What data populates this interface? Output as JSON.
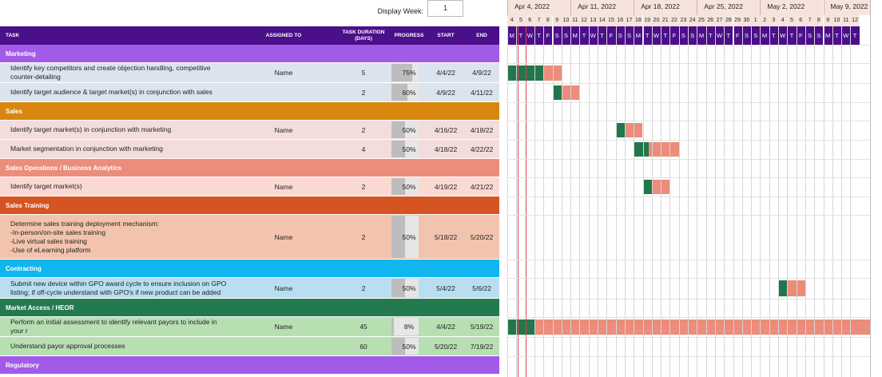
{
  "display_week": {
    "label": "Display Week:",
    "value": "1"
  },
  "header": {
    "task": "TASK",
    "assigned": "ASSIGNED TO",
    "duration": "TASK DURATION (DAYS)",
    "progress": "PROGRESS",
    "start": "START",
    "end": "END"
  },
  "timeline": {
    "weeks": [
      "Apr 4, 2022",
      "Apr 11, 2022",
      "Apr 18, 2022",
      "Apr 25, 2022",
      "May 2, 2022",
      "May 9, 2022"
    ],
    "day_numbers": [
      "4",
      "5",
      "6",
      "7",
      "8",
      "9",
      "10",
      "11",
      "12",
      "13",
      "14",
      "15",
      "16",
      "17",
      "18",
      "19",
      "20",
      "21",
      "22",
      "23",
      "24",
      "25",
      "26",
      "27",
      "28",
      "29",
      "30",
      "1",
      "2",
      "3",
      "4",
      "5",
      "6",
      "7",
      "8",
      "9",
      "10",
      "11",
      "12"
    ],
    "day_letters": [
      "M",
      "T",
      "W",
      "T",
      "F",
      "S",
      "S",
      "M",
      "T",
      "W",
      "T",
      "F",
      "S",
      "S",
      "M",
      "T",
      "W",
      "T",
      "F",
      "S",
      "S",
      "M",
      "T",
      "W",
      "T",
      "F",
      "S",
      "S",
      "M",
      "T",
      "W",
      "T",
      "F",
      "S",
      "S",
      "M",
      "T",
      "W",
      "T"
    ]
  },
  "colors": {
    "header": "#4b0f8a",
    "bar_done": "#23764b",
    "bar_remaining": "#ec8c7b",
    "today": "#d9454f",
    "week_header": "#f6e4dc"
  },
  "groups": [
    {
      "name": "Marketing",
      "color": "#a25ae8",
      "row_color": "#dbe3ee",
      "tasks": [
        {
          "task": "Identify key competitors and create objection handling, competitive\ncounter-detailing",
          "assigned": "Name",
          "duration": "5",
          "progress": "75%",
          "progress_frac": 0.75,
          "start": "4/4/22",
          "end": "4/9/22",
          "bar_start_day": 0,
          "bar_days": 6
        },
        {
          "task": "Identify target audience & target market(s) in conjunction with sales",
          "assigned": "",
          "duration": "2",
          "progress": "60%",
          "progress_frac": 0.6,
          "start": "4/9/22",
          "end": "4/11/22",
          "bar_start_day": 5,
          "bar_days": 3
        }
      ]
    },
    {
      "name": "Sales",
      "color": "#d9860f",
      "row_color": "#f3dcdc",
      "tasks": [
        {
          "task": "Identify target market(s) in conjunction with marketing",
          "assigned": "Name",
          "duration": "2",
          "progress": "50%",
          "progress_frac": 0.5,
          "start": "4/16/22",
          "end": "4/18/22",
          "bar_start_day": 12,
          "bar_days": 3
        },
        {
          "task": "Market segmentation in conjunction with marketing",
          "assigned": "",
          "duration": "4",
          "progress": "50%",
          "progress_frac": 0.5,
          "start": "4/18/22",
          "end": "4/22/22",
          "bar_start_day": 14,
          "bar_days": 5
        }
      ]
    },
    {
      "name": "Sales Operations / Business Analytics",
      "color": "#ec8c7b",
      "row_color": "#fad9d2",
      "tasks": [
        {
          "task": "Identify target market(s)",
          "assigned": "Name",
          "duration": "2",
          "progress": "50%",
          "progress_frac": 0.5,
          "start": "4/19/22",
          "end": "4/21/22",
          "bar_start_day": 15,
          "bar_days": 3
        }
      ]
    },
    {
      "name": "Sales Training",
      "color": "#d65322",
      "row_color": "#f3c4ad",
      "tasks": [
        {
          "task": "Determine sales training deployment mechanism:\n-In-person/on-site sales training\n-Live virtual sales training\n-Use of eLearning platform",
          "assigned": "Name",
          "duration": "2",
          "progress": "50%",
          "progress_frac": 0.5,
          "start": "5/18/22",
          "end": "5/20/22",
          "bar_start_day": -1,
          "bar_days": 0
        }
      ]
    },
    {
      "name": "Contracting",
      "color": "#12b6ef",
      "row_color": "#b9def2",
      "tasks": [
        {
          "task": "Submit new device within GPO award cycle to ensure inclusion on GPO\nlisting; if off-cycle understand with GPO's if new product can be added",
          "assigned": "Name",
          "duration": "2",
          "progress": "50%",
          "progress_frac": 0.5,
          "start": "5/4/22",
          "end": "5/6/22",
          "bar_start_day": 30,
          "bar_days": 3
        }
      ]
    },
    {
      "name": "Market Access / HEOR",
      "color": "#237a4f",
      "row_color": "#b7dfb2",
      "tasks": [
        {
          "task": "Perform an initial assessment to identify relevant payors to include in your r",
          "assigned": "Name",
          "duration": "45",
          "progress": "8%",
          "progress_frac": 0.08,
          "start": "4/4/22",
          "end": "5/19/22",
          "bar_start_day": 0,
          "bar_days": 45
        },
        {
          "task": "Understand payor approval processes",
          "assigned": "",
          "duration": "60",
          "progress": "50%",
          "progress_frac": 0.5,
          "start": "5/20/22",
          "end": "7/19/22",
          "bar_start_day": -1,
          "bar_days": 0
        }
      ]
    },
    {
      "name": "Regulatory",
      "color": "#a25ae8",
      "row_color": "#dbe3ee",
      "tasks": []
    }
  ]
}
